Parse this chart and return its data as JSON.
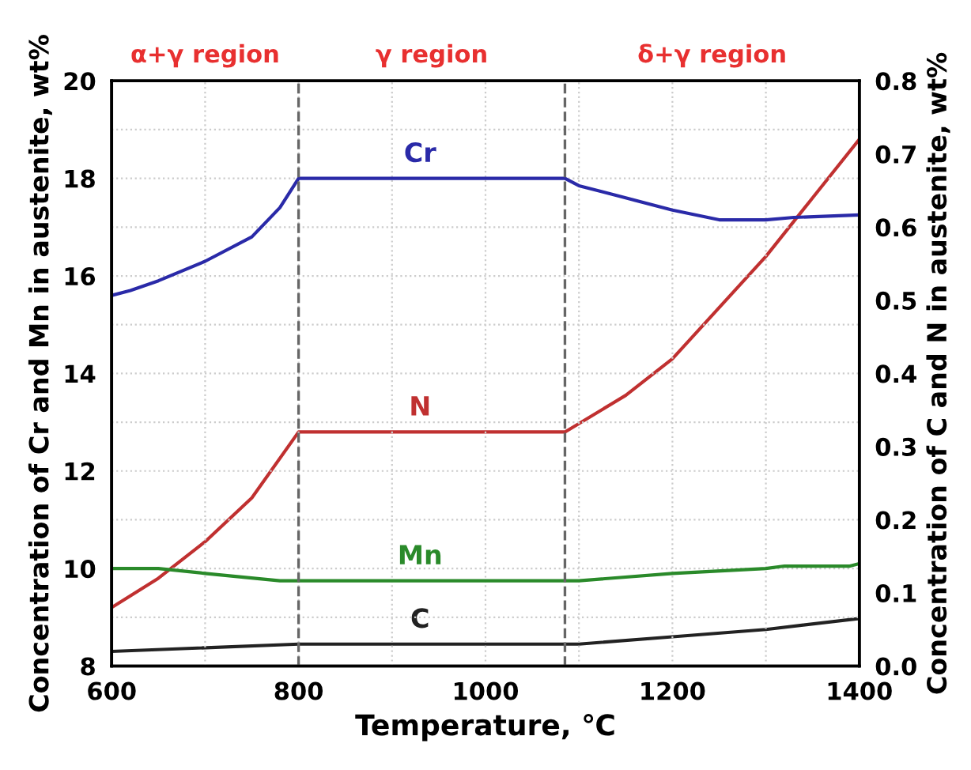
{
  "chart_data": {
    "type": "line",
    "xlabel": "Temperature, ℃",
    "ylabel": "Concentration of Cr and Mn in austenite, wt%",
    "y2label": "Concentration of C and N in austenite, wt%",
    "xlim": [
      600,
      1400
    ],
    "xticks": [
      600,
      {
        "value": 700,
        "label": null
      },
      800,
      {
        "value": 900,
        "label": null
      },
      1000,
      {
        "value": 1100,
        "label": null
      },
      1200,
      {
        "value": 1300,
        "label": null
      },
      1400
    ],
    "ylim": [
      8,
      20
    ],
    "yticks": [
      8,
      {
        "value": 9,
        "label": null
      },
      10,
      {
        "value": 11,
        "label": null
      },
      12,
      {
        "value": 13,
        "label": null
      },
      14,
      {
        "value": 15,
        "label": null
      },
      16,
      {
        "value": 17,
        "label": null
      },
      18,
      {
        "value": 19,
        "label": null
      },
      20
    ],
    "y2lim": [
      0,
      0.8
    ],
    "y2ticks": [
      {
        "value": 0,
        "label": "0.0"
      },
      0.1,
      0.2,
      0.3,
      0.4,
      0.5,
      0.6,
      0.7,
      0.8
    ],
    "grid": true,
    "legend": false,
    "line_style": "solid",
    "series": [
      {
        "name": "Cr",
        "color": "#2a2aa8",
        "x": [
          600,
          620,
          650,
          700,
          750,
          780,
          800,
          1085,
          1100,
          1150,
          1200,
          1250,
          1300,
          1330,
          1400
        ],
        "values": [
          15.6,
          15.7,
          15.9,
          16.3,
          16.8,
          17.4,
          18.0,
          18.0,
          17.85,
          17.6,
          17.35,
          17.15,
          17.15,
          17.2,
          17.25
        ]
      },
      {
        "name": "N",
        "color": "#c03030",
        "axis": "y2",
        "x": [
          600,
          650,
          700,
          750,
          800,
          1085,
          1150,
          1200,
          1250,
          1300,
          1350,
          1400
        ],
        "values": [
          0.08,
          0.12,
          0.17,
          0.23,
          0.32,
          0.32,
          0.37,
          0.42,
          0.49,
          0.56,
          0.64,
          0.72
        ]
      },
      {
        "name": "Mn",
        "color": "#2a8a2a",
        "x": [
          600,
          650,
          700,
          780,
          800,
          1100,
          1200,
          1300,
          1320,
          1390,
          1400
        ],
        "values": [
          10.0,
          10.0,
          9.9,
          9.75,
          9.75,
          9.75,
          9.9,
          10.0,
          10.05,
          10.05,
          10.1
        ]
      },
      {
        "name": "C",
        "color": "#222222",
        "axis": "y2",
        "x": [
          600,
          800,
          1100,
          1200,
          1300,
          1400
        ],
        "values": [
          0.02,
          0.03,
          0.03,
          0.04,
          0.05,
          0.065
        ]
      }
    ],
    "ref_lines": [
      {
        "axis": "x",
        "value": 800,
        "color": "#666666",
        "line_style": "dashed"
      },
      {
        "axis": "x",
        "value": 1085,
        "color": "#666666",
        "line_style": "dashed"
      }
    ],
    "annotations": [
      "α+γ region",
      "γ region",
      "δ+γ region"
    ]
  }
}
